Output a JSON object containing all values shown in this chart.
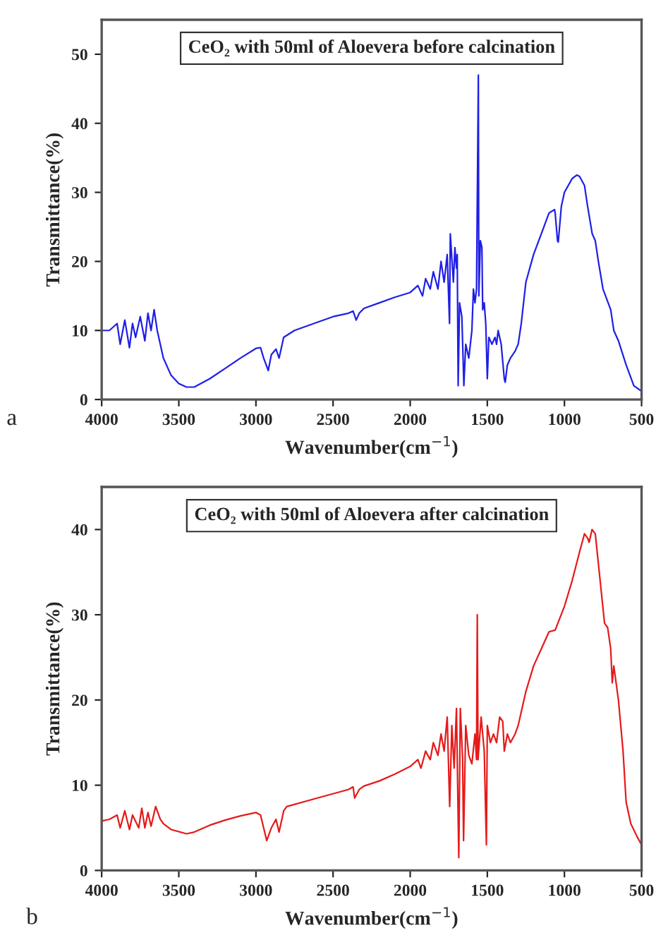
{
  "chart_data": [
    {
      "type": "line",
      "title": "CeO₂ with 50ml of Aloevera before calcination",
      "xlabel": "Wavenumber(cm$^{−1}$)",
      "ylabel": "Transmittance(%)",
      "annotations": [
        "a"
      ],
      "xlim": [
        4000,
        500
      ],
      "xticks": [
        4000,
        3500,
        3000,
        2500,
        2000,
        1500,
        1000,
        500
      ],
      "ylim": [
        0,
        55
      ],
      "yticks": [
        0,
        10,
        20,
        30,
        40,
        50
      ],
      "grid": false,
      "legend": false,
      "marker": "none",
      "line_style": "solid",
      "series": [
        {
          "color": "#1f1fe6",
          "x": [
            4000,
            3950,
            3900,
            3880,
            3850,
            3820,
            3800,
            3780,
            3750,
            3720,
            3700,
            3680,
            3660,
            3640,
            3600,
            3550,
            3500,
            3450,
            3400,
            3300,
            3200,
            3100,
            3000,
            2970,
            2950,
            2920,
            2900,
            2870,
            2850,
            2820,
            2750,
            2600,
            2500,
            2400,
            2370,
            2350,
            2330,
            2300,
            2200,
            2100,
            2000,
            1950,
            1920,
            1900,
            1870,
            1850,
            1820,
            1800,
            1780,
            1760,
            1745,
            1740,
            1720,
            1710,
            1700,
            1695,
            1689,
            1680,
            1665,
            1652,
            1640,
            1620,
            1600,
            1590,
            1580,
            1570,
            1558,
            1555,
            1545,
            1535,
            1530,
            1520,
            1510,
            1500,
            1490,
            1470,
            1450,
            1440,
            1430,
            1410,
            1390,
            1384,
            1370,
            1350,
            1320,
            1300,
            1280,
            1250,
            1200,
            1150,
            1100,
            1064,
            1060,
            1045,
            1040,
            1020,
            1000,
            950,
            920,
            902,
            870,
            850,
            820,
            800,
            780,
            750,
            700,
            680,
            650,
            600,
            550,
            500
          ],
          "values": [
            10,
            10,
            11,
            8,
            11.5,
            7.5,
            11,
            9,
            12,
            8.5,
            12.5,
            10,
            13,
            10,
            6,
            3.5,
            2.3,
            1.8,
            1.8,
            3,
            4.5,
            6,
            7.4,
            7.5,
            6,
            4.2,
            6.5,
            7.3,
            6,
            9,
            10,
            11.2,
            12,
            12.5,
            12.8,
            11.5,
            12.5,
            13.2,
            14,
            14.8,
            15.5,
            16.5,
            15,
            17.5,
            16,
            18.5,
            16,
            20,
            17,
            21,
            11,
            24,
            17,
            22,
            19,
            21,
            2,
            14,
            12,
            2,
            8,
            6,
            10,
            16,
            14,
            16,
            47,
            15,
            23,
            22,
            13,
            14,
            11,
            3,
            9,
            8,
            9,
            8,
            10,
            8,
            3,
            2.5,
            5,
            6,
            7,
            8,
            11,
            17,
            21,
            24,
            27,
            27.5,
            27,
            23,
            22.8,
            28,
            30,
            32,
            32.5,
            32.3,
            31,
            28,
            24,
            23,
            20,
            16,
            13,
            10,
            8.5,
            5,
            2,
            1.2
          ]
        }
      ]
    },
    {
      "type": "line",
      "title": "CeO₂ with 50ml of Aloevera after calcination",
      "xlabel": "Wavenumber(cm$^{−1}$)",
      "ylabel": "Transmittance(%)",
      "annotations": [
        "b"
      ],
      "xlim": [
        4000,
        500
      ],
      "xticks": [
        4000,
        3500,
        3000,
        2500,
        2000,
        1500,
        1000,
        500
      ],
      "ylim": [
        0,
        45
      ],
      "yticks": [
        0,
        10,
        20,
        30,
        40
      ],
      "grid": false,
      "legend": false,
      "marker": "none",
      "line_style": "solid",
      "series": [
        {
          "color": "#e61a1a",
          "x": [
            4000,
            3950,
            3900,
            3880,
            3850,
            3820,
            3800,
            3760,
            3740,
            3720,
            3700,
            3680,
            3650,
            3620,
            3600,
            3550,
            3450,
            3400,
            3300,
            3200,
            3100,
            3000,
            2970,
            2930,
            2900,
            2870,
            2850,
            2820,
            2800,
            2600,
            2400,
            2370,
            2360,
            2330,
            2300,
            2200,
            2100,
            2000,
            1950,
            1930,
            1900,
            1870,
            1850,
            1820,
            1800,
            1780,
            1760,
            1744,
            1730,
            1715,
            1700,
            1685,
            1675,
            1660,
            1654,
            1640,
            1620,
            1600,
            1580,
            1570,
            1565,
            1560,
            1540,
            1520,
            1506,
            1500,
            1480,
            1460,
            1440,
            1420,
            1400,
            1390,
            1370,
            1350,
            1320,
            1300,
            1250,
            1200,
            1150,
            1100,
            1060,
            1000,
            950,
            900,
            870,
            850,
            840,
            821,
            800,
            780,
            740,
            720,
            700,
            690,
            680,
            650,
            620,
            600,
            570,
            530,
            500
          ],
          "values": [
            5.8,
            6,
            6.5,
            5,
            7,
            4.8,
            6.5,
            5,
            7.3,
            5,
            6.8,
            5.2,
            7.5,
            6,
            5.5,
            4.8,
            4.3,
            4.5,
            5.3,
            5.9,
            6.4,
            6.8,
            6.5,
            3.5,
            5,
            6,
            4.5,
            7,
            7.5,
            8.5,
            9.5,
            9.8,
            8.5,
            9.5,
            9.9,
            10.5,
            11.3,
            12.2,
            13,
            12,
            14,
            13,
            15,
            13.5,
            16,
            14,
            18,
            7.5,
            17,
            12,
            19,
            1.5,
            19,
            13,
            3.5,
            17,
            13.5,
            12.5,
            16,
            13,
            30,
            13,
            18,
            14,
            3,
            17,
            15,
            16,
            15,
            18,
            17.5,
            14,
            16,
            15,
            16,
            17,
            21,
            24,
            26,
            28,
            28.2,
            31,
            34,
            37.5,
            39.5,
            39,
            38.5,
            40,
            39.5,
            36,
            29,
            28.5,
            26,
            22,
            24,
            20,
            14,
            8,
            5.5,
            4,
            3
          ]
        }
      ]
    }
  ]
}
